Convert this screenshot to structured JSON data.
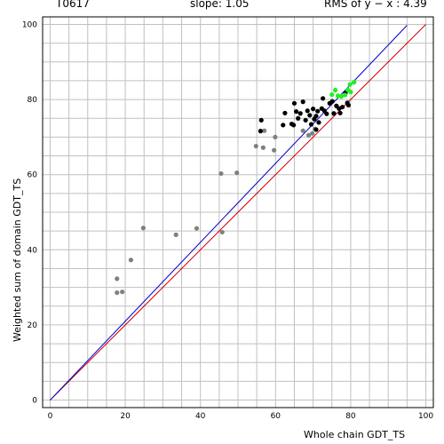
{
  "header": {
    "target_id": "T0617",
    "slope_text": "slope: 1.05",
    "rms_text": "RMS of  y − x : 4.39"
  },
  "colors": {
    "background": "#ffffff",
    "grid": "#c0c0c0",
    "fit_line": "#0000cc",
    "diagonal": "#cc0000",
    "point_black": "#000000",
    "point_gray": "#808080",
    "point_green": "#22ee22"
  },
  "chart_data": {
    "type": "scatter",
    "xlabel": "Whole chain GDT_TS",
    "ylabel": "Weighted sum of domain GDT_TS",
    "xlim": [
      -2,
      102
    ],
    "ylim": [
      -2,
      102
    ],
    "xticks": [
      0,
      20,
      40,
      60,
      80,
      100
    ],
    "yticks": [
      0,
      20,
      40,
      60,
      80,
      100
    ],
    "grid": true,
    "fit_line": {
      "slope": 1.05,
      "x_range": [
        0,
        95
      ]
    },
    "diagonal": {
      "slope": 1.0,
      "x_range": [
        0,
        100
      ]
    },
    "series": [
      {
        "color": "gray",
        "points": [
          [
            17.8,
            32.3
          ],
          [
            17.8,
            28.6
          ],
          [
            19.2,
            28.8
          ],
          [
            21.5,
            37.3
          ],
          [
            24.8,
            45.8
          ],
          [
            33.5,
            44.0
          ],
          [
            39.0,
            45.7
          ],
          [
            45.5,
            60.3
          ],
          [
            45.8,
            44.7
          ],
          [
            49.7,
            60.5
          ],
          [
            54.8,
            67.6
          ],
          [
            56.7,
            67.2
          ],
          [
            57.0,
            71.7
          ],
          [
            59.6,
            66.5
          ],
          [
            59.9,
            70.0
          ],
          [
            67.3,
            71.7
          ],
          [
            68.8,
            70.5
          ],
          [
            69.8,
            71.0
          ],
          [
            70.5,
            72.2
          ]
        ]
      },
      {
        "color": "black",
        "points": [
          [
            56.2,
            74.5
          ],
          [
            62.0,
            73.2
          ],
          [
            62.5,
            76.4
          ],
          [
            64.3,
            73.5
          ],
          [
            64.8,
            73.2
          ],
          [
            65.0,
            79.0
          ],
          [
            65.5,
            76.8
          ],
          [
            66.0,
            75.0
          ],
          [
            66.6,
            76.3
          ],
          [
            67.3,
            79.4
          ],
          [
            68.0,
            74.5
          ],
          [
            68.5,
            77.0
          ],
          [
            69.1,
            75.8
          ],
          [
            69.5,
            73.4
          ],
          [
            70.0,
            77.5
          ],
          [
            70.3,
            74.8
          ],
          [
            70.8,
            75.6
          ],
          [
            71.2,
            76.9
          ],
          [
            71.5,
            73.9
          ],
          [
            72.3,
            77.6
          ],
          [
            72.6,
            80.3
          ],
          [
            73.0,
            77.0
          ],
          [
            73.6,
            76.2
          ],
          [
            74.4,
            79.0
          ],
          [
            75.1,
            79.5
          ],
          [
            75.5,
            76.3
          ],
          [
            76.2,
            78.3
          ],
          [
            76.9,
            77.6
          ],
          [
            77.2,
            76.4
          ],
          [
            77.8,
            78.0
          ],
          [
            78.6,
            81.7
          ],
          [
            79.1,
            79.1
          ],
          [
            79.4,
            78.5
          ],
          [
            70.8,
            72.0
          ],
          [
            56.0,
            71.6
          ]
        ]
      },
      {
        "color": "green",
        "points": [
          [
            75.0,
            81.3
          ],
          [
            75.9,
            82.5
          ],
          [
            76.6,
            81.0
          ],
          [
            77.5,
            80.8
          ],
          [
            78.5,
            81.2
          ],
          [
            79.2,
            82.6
          ],
          [
            80.0,
            82.0
          ],
          [
            80.9,
            84.6
          ],
          [
            79.8,
            84.0
          ]
        ]
      }
    ]
  }
}
